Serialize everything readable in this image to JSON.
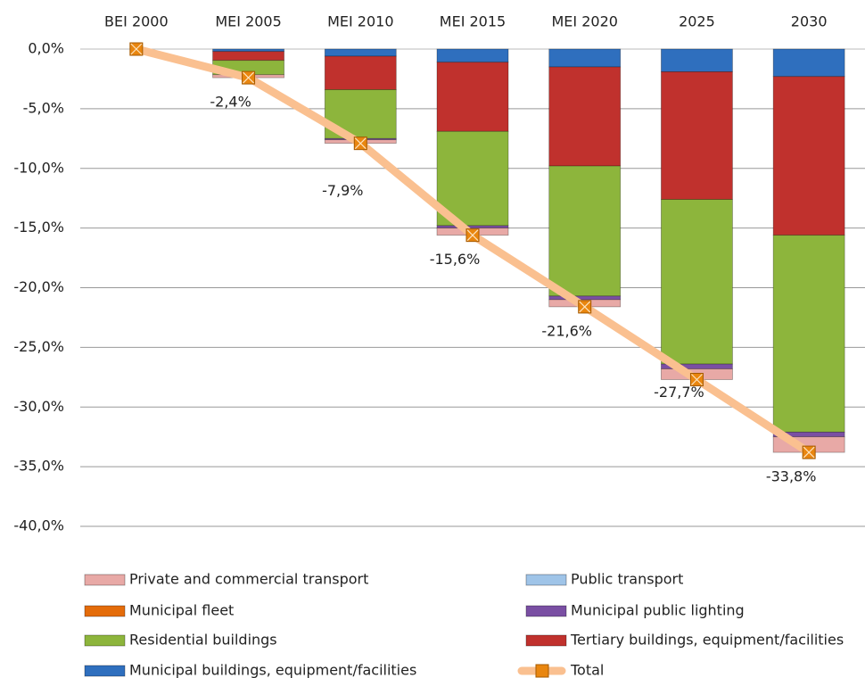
{
  "chart_data": {
    "type": "bar",
    "stacked": true,
    "categories": [
      "BEI 2000",
      "MEI 2005",
      "MEI 2010",
      "MEI 2015",
      "MEI 2020",
      "2025",
      "2030"
    ],
    "series": [
      {
        "name": "Private and commercial transport",
        "color": "#e8a9a6",
        "values": [
          0,
          -0.25,
          -0.3,
          -0.6,
          -0.6,
          -0.9,
          -1.3
        ]
      },
      {
        "name": "Public transport",
        "color": "#9fc4e8",
        "values": [
          0,
          0,
          0,
          0,
          0,
          0,
          0
        ]
      },
      {
        "name": "Municipal fleet",
        "color": "#e46c0a",
        "values": [
          0,
          0,
          0,
          0,
          0,
          0,
          0
        ]
      },
      {
        "name": "Municipal public lighting",
        "color": "#7a4fa3",
        "values": [
          0,
          0,
          -0.1,
          -0.2,
          -0.3,
          -0.4,
          -0.4
        ]
      },
      {
        "name": "Residential buildings",
        "color": "#8db53c",
        "values": [
          0,
          -1.2,
          -4.1,
          -7.9,
          -10.9,
          -13.8,
          -16.5
        ]
      },
      {
        "name": "Tertiary buildings, equipment/facilities",
        "color": "#c0312d",
        "values": [
          0,
          -0.75,
          -2.8,
          -5.8,
          -8.3,
          -10.7,
          -13.3
        ]
      },
      {
        "name": "Municipal buildings, equipment/facilities",
        "color": "#2f6fbe",
        "values": [
          0,
          -0.2,
          -0.6,
          -1.1,
          -1.5,
          -1.9,
          -2.3
        ]
      },
      {
        "name": "Total",
        "type": "line",
        "color": "#fac090",
        "marker_color": "#e9860f",
        "values": [
          0,
          -2.4,
          -7.9,
          -15.6,
          -21.6,
          -27.7,
          -33.8
        ],
        "value_labels": [
          null,
          "-2,4%",
          "-7,9%",
          "-15,6%",
          "-21,6%",
          "-27,7%",
          "-33,8%"
        ]
      }
    ],
    "ylim": [
      -40,
      0
    ],
    "yticks": [
      {
        "value": 0,
        "label": "0,0%"
      },
      {
        "value": -5,
        "label": "-5,0%"
      },
      {
        "value": -10,
        "label": "-10,0%"
      },
      {
        "value": -15,
        "label": "-15,0%"
      },
      {
        "value": -20,
        "label": "-20,0%"
      },
      {
        "value": -25,
        "label": "-25,0%"
      },
      {
        "value": -30,
        "label": "-30,0%"
      },
      {
        "value": -35,
        "label": "-35,0%"
      },
      {
        "value": -40,
        "label": "-40,0%"
      }
    ],
    "grid": true,
    "legend": "bottom"
  }
}
